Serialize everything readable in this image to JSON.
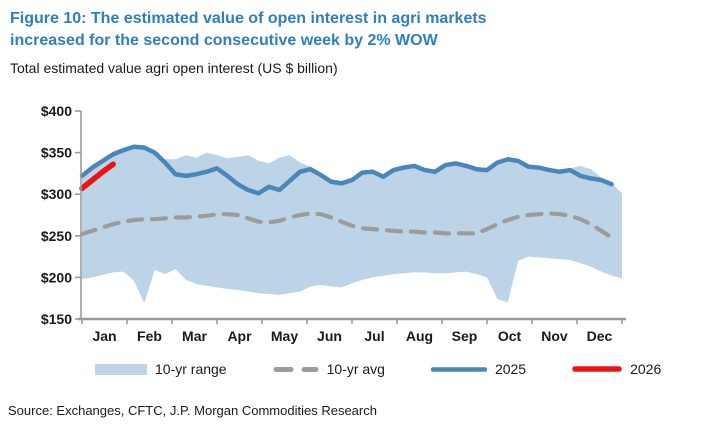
{
  "figure": {
    "title_lines": [
      "Figure 10: The estimated value of open interest in agri markets",
      "increased for the second consecutive week by 2% WOW"
    ],
    "subtitle": "Total estimated value agri open interest (US $ billion)",
    "source": "Source: Exchanges, CFTC, J.P. Morgan Commodities Research"
  },
  "colors": {
    "title_blue": "#2F7EC1",
    "band_fill": "#BDD3E7",
    "avg_gray": "#9C9C9C",
    "line_2025": "#4A86B8",
    "line_2026": "#EE1312",
    "axis_gray": "#9B9B9B",
    "text_dark": "#1A1A1A"
  },
  "chart_data": {
    "type": "line",
    "title": "Total estimated value agri open interest (US $ billion)",
    "xlabel": "",
    "ylabel": "US $ billion",
    "x_unit": "week of year (weekly data)",
    "months": [
      "Jan",
      "Feb",
      "Mar",
      "Apr",
      "May",
      "Jun",
      "Jul",
      "Aug",
      "Sep",
      "Oct",
      "Nov",
      "Dec"
    ],
    "ylim": [
      150,
      400
    ],
    "yticks": [
      {
        "label": "$150",
        "value": 150
      },
      {
        "label": "$200",
        "value": 200
      },
      {
        "label": "$250",
        "value": 250
      },
      {
        "label": "$300",
        "value": 300
      },
      {
        "label": "$350",
        "value": 350
      },
      {
        "label": "$400",
        "value": 400
      }
    ],
    "grid": false,
    "legend_position": "bottom",
    "series": [
      {
        "name": "10-yr range",
        "kind": "band",
        "upper": [
          322,
          332,
          341,
          349,
          354,
          358,
          357,
          351,
          342,
          342,
          347,
          344,
          350,
          347,
          343,
          345,
          347,
          340,
          337,
          344,
          347,
          338,
          333,
          326,
          318,
          316,
          320,
          328,
          329,
          324,
          331,
          334,
          336,
          331,
          329,
          337,
          339,
          336,
          333,
          331,
          340,
          343,
          341,
          336,
          334,
          330,
          328,
          331,
          334,
          330,
          320,
          313,
          301
        ],
        "lower": [
          198,
          200,
          203,
          206,
          207,
          196,
          169,
          209,
          204,
          210,
          197,
          192,
          190,
          188,
          186,
          185,
          183,
          181,
          180,
          179,
          181,
          183,
          189,
          191,
          189,
          188,
          193,
          197,
          200,
          202,
          204,
          205,
          206,
          206,
          205,
          205,
          206,
          207,
          204,
          200,
          174,
          170,
          220,
          225,
          224,
          223,
          222,
          221,
          217,
          213,
          207,
          202,
          199
        ]
      },
      {
        "name": "10-yr avg",
        "kind": "dashed-line",
        "values": [
          252,
          256,
          260,
          264,
          267,
          269,
          270,
          270,
          271,
          272,
          272,
          273,
          274,
          276,
          276,
          275,
          271,
          267,
          266,
          268,
          272,
          275,
          277,
          276,
          272,
          267,
          262,
          259,
          258,
          257,
          256,
          255,
          255,
          254,
          254,
          253,
          253,
          253,
          253,
          258,
          264,
          269,
          273,
          275,
          276,
          277,
          276,
          274,
          270,
          264,
          256,
          248
        ]
      },
      {
        "name": "2025",
        "kind": "line",
        "values": [
          322,
          332,
          340,
          348,
          353,
          357,
          356,
          350,
          338,
          324,
          322,
          324,
          327,
          331,
          322,
          312,
          305,
          301,
          309,
          305,
          316,
          327,
          330,
          323,
          315,
          313,
          317,
          326,
          327,
          321,
          329,
          332,
          334,
          329,
          327,
          335,
          337,
          334,
          330,
          329,
          338,
          342,
          340,
          333,
          332,
          329,
          327,
          329,
          322,
          319,
          317,
          312
        ]
      },
      {
        "name": "2026",
        "kind": "line",
        "values": [
          307,
          317,
          327,
          336
        ]
      }
    ]
  }
}
